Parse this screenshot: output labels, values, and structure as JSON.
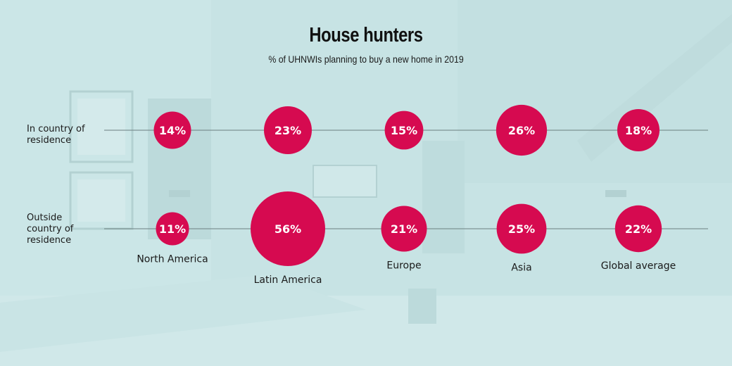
{
  "chart_data": {
    "type": "bubble",
    "title": "House hunters",
    "subtitle": "% of UHNWIs planning to buy a new home in 2019",
    "categories": [
      "North America",
      "Latin America",
      "Europe",
      "Asia",
      "Global average"
    ],
    "rows": [
      {
        "label_lines": [
          "In country of",
          "residence"
        ],
        "values": [
          14,
          23,
          15,
          26,
          18
        ]
      },
      {
        "label_lines": [
          "Outside",
          "country of",
          "residence"
        ],
        "values": [
          11,
          56,
          21,
          25,
          22
        ]
      }
    ],
    "value_suffix": "%",
    "bubble_color": "#d60a50",
    "line_color": "#6b7f80"
  }
}
